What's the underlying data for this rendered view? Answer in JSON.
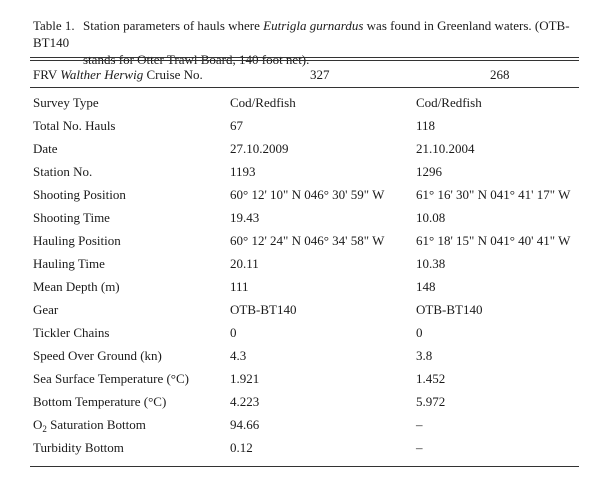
{
  "caption": {
    "label": "Table 1.",
    "text_before_species": "Station parameters of hauls where ",
    "species": "Eutrigla gurnardus",
    "text_after_species": " was found in Greenland waters. (OTB-BT140",
    "line2": "stands for Otter Trawl Board, 140 foot net)."
  },
  "header": {
    "col0_prefix": "FRV ",
    "col0_vessel": "Walther Herwig",
    "col0_suffix": " Cruise No.",
    "col1": "327",
    "col2": "268"
  },
  "rows": [
    {
      "param": "Survey Type",
      "c327": "Cod/Redfish",
      "c268": "Cod/Redfish"
    },
    {
      "param": "Total No. Hauls",
      "c327": "67",
      "c268": "118"
    },
    {
      "param": "Date",
      "c327": "27.10.2009",
      "c268": "21.10.2004"
    },
    {
      "param": "Station No.",
      "c327": "1193",
      "c268": "1296"
    },
    {
      "param": "Shooting Position",
      "c327": "60° 12' 10\" N 046° 30' 59\" W",
      "c268": "61° 16' 30\" N 041° 41' 17\" W"
    },
    {
      "param": "Shooting Time",
      "c327": "19.43",
      "c268": "10.08"
    },
    {
      "param": "Hauling Position",
      "c327": "60° 12' 24\" N 046° 34' 58\" W",
      "c268": "61° 18' 15\" N 041° 40' 41\" W"
    },
    {
      "param": "Hauling Time",
      "c327": "20.11",
      "c268": "10.38"
    },
    {
      "param": "Mean Depth (m)",
      "c327": "111",
      "c268": "148"
    },
    {
      "param": "Gear",
      "c327": "OTB-BT140",
      "c268": "OTB-BT140"
    },
    {
      "param": "Tickler Chains",
      "c327": "0",
      "c268": "0"
    },
    {
      "param": "Speed Over Ground (kn)",
      "c327": "4.3",
      "c268": "3.8"
    },
    {
      "param": "Sea Surface Temperature (°C)",
      "c327": "1.921",
      "c268": "1.452"
    },
    {
      "param": "Bottom Temperature (°C)",
      "c327": "4.223",
      "c268": "5.972"
    },
    {
      "param": "O",
      "param_sub": "2",
      "param_rest": " Saturation Bottom",
      "c327": "94.66",
      "c268": "–"
    },
    {
      "param": "Turbidity Bottom",
      "c327": "0.12",
      "c268": "–"
    }
  ]
}
